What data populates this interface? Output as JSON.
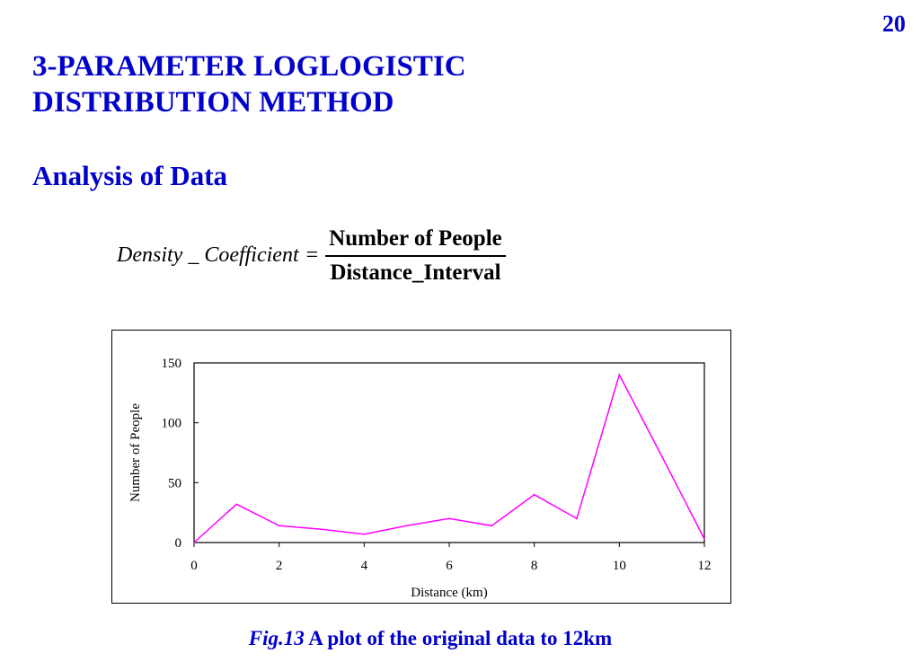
{
  "page_number": "20",
  "title_line1": "3-PARAMETER LOGLOGISTIC",
  "title_line2": "DISTRIBUTION METHOD",
  "subtitle": "Analysis of Data",
  "formula": {
    "lhs": "Density _ Coefficient",
    "equals": "=",
    "numerator": "Number of People",
    "denominator": "Distance_Interval"
  },
  "chart_data": {
    "type": "line",
    "title": "",
    "xlabel": "Distance (km)",
    "ylabel": "Number of People",
    "xlim": [
      0,
      12
    ],
    "ylim": [
      0,
      150
    ],
    "x_ticks": [
      0,
      2,
      4,
      6,
      8,
      10,
      12
    ],
    "y_ticks": [
      0,
      50,
      100,
      150
    ],
    "grid": false,
    "series": [
      {
        "color": "#ff00ff",
        "x": [
          0,
          1,
          2,
          3,
          4,
          5,
          6,
          7,
          8,
          9,
          10,
          11,
          12
        ],
        "y": [
          0,
          32,
          14,
          11,
          7,
          14,
          20,
          14,
          40,
          20,
          140,
          72,
          3
        ]
      }
    ]
  },
  "caption": {
    "fig_label": "Fig.13",
    "text": " A plot of the original data to 12km"
  }
}
